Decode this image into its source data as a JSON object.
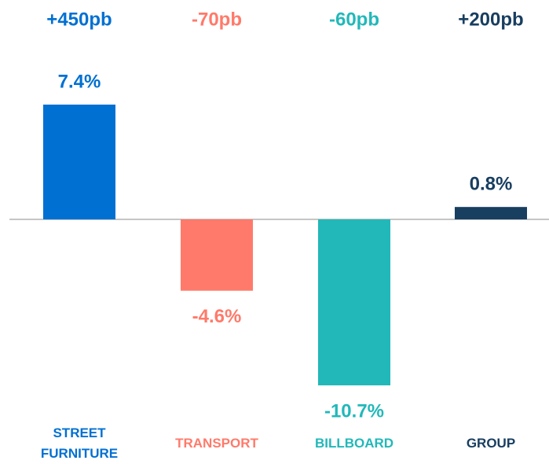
{
  "chart_data": {
    "type": "bar",
    "categories": [
      "STREET FURNITURE",
      "TRANSPORT",
      "BILLBOARD",
      "GROUP"
    ],
    "values": [
      7.4,
      -4.6,
      -10.7,
      0.8
    ],
    "value_labels": [
      "7.4%",
      "-4.6%",
      "-10.7%",
      "0.8%"
    ],
    "annotations": [
      "+450pb",
      "-70pb",
      "-60pb",
      "+200pb"
    ],
    "colors": [
      "#0070d2",
      "#ff7a6a",
      "#22b8b9",
      "#183e60"
    ]
  }
}
